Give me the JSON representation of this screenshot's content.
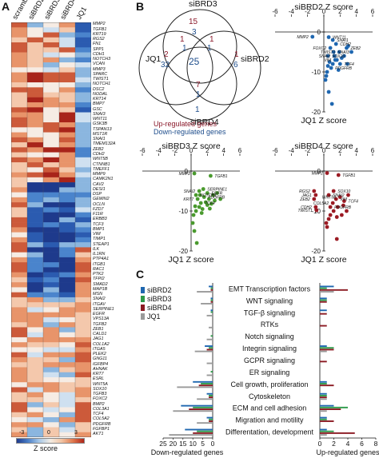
{
  "panels": {
    "a": "A",
    "b": "B",
    "c": "C"
  },
  "heatmap": {
    "columns": [
      "scramble",
      "siBRD2",
      "siBRD3",
      "siBRD4",
      "JQ1"
    ],
    "genes": [
      "MMP2",
      "TGFB1",
      "KRT19",
      "RGS2",
      "FN1",
      "SPP1",
      "CDH1",
      "NOTCH3",
      "VCAN",
      "MMP3",
      "SPARC",
      "TWIST1",
      "NOTCH1",
      "DSC2",
      "NODAL",
      "KRT14",
      "BMP7",
      "GSC",
      "SNAI3",
      "WNT11",
      "GSK3B",
      "TSPAN13",
      "MST1R",
      "SNAI1",
      "TMEM132A",
      "ZEB2",
      "CDH2",
      "WNT5B",
      "CTNNB1",
      "TMEFF1",
      "MMP9",
      "CAMK2N1",
      "CAV2",
      "DESI1",
      "DSP",
      "GEMIN2",
      "OCLN",
      "FZD7",
      "F11R",
      "ERBB3",
      "TCF3",
      "BMP1",
      "VIM",
      "TIMP1",
      "STEAP1",
      "ILK",
      "IL1RN",
      "PTP4A1",
      "ITGB1",
      "RAC1",
      "PTK2",
      "TFPI2",
      "SMAD2",
      "MAP1B",
      "MSN",
      "SNAI2",
      "ITGAV",
      "SERPINE1",
      "EGFR",
      "VPS13A",
      "TGFB2",
      "ZEB1",
      "CALD1",
      "JAG1",
      "COL1A2",
      "ITGA5",
      "PLEK2",
      "GNG11",
      "IGFBP4",
      "AHNAK",
      "KRT7",
      "ESRL",
      "WNT5A",
      "SOX10",
      "TGFB3",
      "FOXC2",
      "BMP2",
      "COL3A1",
      "TCF4",
      "COL5A2",
      "PDGFRB",
      "FGFBP1",
      "AKT1"
    ],
    "colorbar": {
      "min": "-3",
      "mid": "0",
      "max": "3",
      "label": "Z score"
    }
  },
  "venn": {
    "labels": {
      "top": "siBRD3",
      "left": "JQ1",
      "right": "siBRD2",
      "bottom": "siBRD4"
    },
    "regions": [
      {
        "up": "15",
        "down": "3"
      },
      {
        "up": "2",
        "down": "32"
      },
      {
        "up": "1",
        "down": "6"
      },
      {
        "up": "1",
        "down": "1"
      },
      {
        "up": "1",
        "down": "1"
      },
      {
        "up": "7",
        "down": "1"
      },
      {
        "center": "25"
      },
      {
        "up": "",
        "down": "1"
      }
    ],
    "legend_up": "Up-regulated genes",
    "legend_down": "Down-regulated genes",
    "up_color": "#8b1a2b",
    "down_color": "#1f4e8c"
  },
  "scatters": [
    {
      "title": "siBRD2 Z score",
      "xlabel": "JQ1 Z score",
      "color": "#1f67b0",
      "xticks": [
        "-6",
        "-4",
        "-2",
        "0",
        "2",
        "4",
        "6"
      ],
      "yticks": [
        "0",
        "-10",
        "-20"
      ],
      "labels": [
        "MMP2",
        "WNT11",
        "SNAI1",
        "TWIST1",
        "ZEB2",
        "CDH2",
        "FOXC2",
        "SNAI3",
        "SOX10",
        "VIM",
        "TCF4",
        "PDGFRB",
        "SNAI2"
      ]
    },
    {
      "title": "siBRD3 Z score",
      "xlabel": "JQ1 Z score",
      "color": "#4a9a2e",
      "xticks": [
        "-6",
        "-4",
        "-2",
        "0",
        "2",
        "4",
        "6"
      ],
      "yticks": [
        "0",
        "-10",
        "-20"
      ],
      "labels": [
        "MMP2",
        "TGFB1",
        "NOTCH1",
        "SNAI2",
        "SERPINE1",
        "EGFR",
        "KRT7",
        "TCF4",
        "PDGFRB"
      ]
    },
    {
      "title": "siBRD4 Z score",
      "xlabel": "JQ1 Z score",
      "color": "#9b1b24",
      "xticks": [
        "-6",
        "-4",
        "-2",
        "0",
        "2",
        "4",
        "6"
      ],
      "yticks": [
        "0",
        "-10",
        "-20"
      ],
      "labels": [
        "MMP2",
        "TGFB1",
        "RGS2",
        "JAG1",
        "ZEB2",
        "CDH2",
        "TWIST1",
        "SNAI2",
        "SOX10",
        "WNT5A",
        "VIM",
        "TCF4",
        "COL5A2",
        "PDGFRB"
      ]
    }
  ],
  "bar_panel": {
    "legend": [
      {
        "name": "siBRD2",
        "color": "#1f67b0"
      },
      {
        "name": "siBRD3",
        "color": "#2e9a4a"
      },
      {
        "name": "siBRD4",
        "color": "#8b1a22"
      },
      {
        "name": "JQ1",
        "color": "#9a9a9a"
      }
    ],
    "categories": [
      "EMT Transcription factors",
      "WNT signaling",
      "TGF-β signaling",
      "RTKs",
      "Notch signaling",
      "Integrin signaling",
      "GCPR signaling",
      "ER signaling",
      "Cell growth, proliferation",
      "Cytoskeleton",
      "ECM and cell adhesion",
      "Migration and motility",
      "Differentation, development"
    ],
    "left_ticks": [
      "25",
      "20",
      "15",
      "10",
      "5",
      "0"
    ],
    "right_ticks": [
      "0",
      "2",
      "4",
      "6",
      "8"
    ],
    "left_label": "Down-regulated genes",
    "right_label": "Up-regulated genes",
    "down_values": {
      "siBRD2": [
        2,
        1,
        1,
        0,
        0,
        4,
        0,
        0,
        10,
        3,
        16,
        3,
        14
      ],
      "siBRD3": [
        1,
        1,
        1,
        0,
        1,
        2,
        0,
        1,
        6,
        2,
        10,
        2,
        8
      ],
      "siBRD4": [
        1,
        1,
        0,
        0,
        0,
        3,
        0,
        0,
        7,
        2,
        12,
        2,
        10
      ],
      "JQ1": [
        8,
        6,
        3,
        2,
        3,
        9,
        3,
        3,
        18,
        8,
        20,
        8,
        22
      ]
    },
    "up_values": {
      "siBRD2": [
        2,
        1,
        1,
        0,
        0,
        1,
        0,
        0,
        1,
        1,
        2,
        1,
        1
      ],
      "siBRD3": [
        1,
        1,
        0,
        0,
        0,
        2,
        0,
        0,
        1,
        1,
        4,
        1,
        2
      ],
      "siBRD4": [
        4,
        1,
        1,
        1,
        0,
        2,
        1,
        0,
        2,
        1,
        3,
        2,
        5
      ],
      "JQ1": [
        2,
        0,
        0,
        0,
        0,
        1,
        0,
        0,
        0,
        1,
        1,
        0,
        1
      ]
    }
  }
}
